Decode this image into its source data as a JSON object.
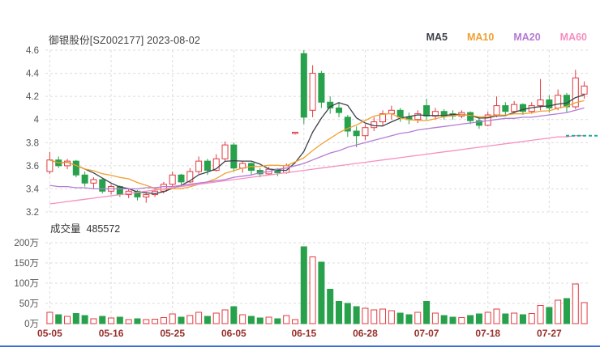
{
  "header": {
    "title": "御银股份[SZ002177] 2023-08-02",
    "legend": [
      {
        "label": "MA5",
        "color": "#3c4048"
      },
      {
        "label": "MA10",
        "color": "#f0a030"
      },
      {
        "label": "MA20",
        "color": "#b57bd5"
      },
      {
        "label": "MA60",
        "color": "#f68fc0"
      }
    ]
  },
  "volume": {
    "label": "成交量",
    "value": "485572"
  },
  "chart_data": {
    "type": "candlestick",
    "title": "御银股份[SZ002177] 2023-08-02",
    "legend_position": "top-right",
    "grid": true,
    "price_axis": {
      "min": 3.2,
      "max": 4.6,
      "ticks": [
        {
          "v": 4.6,
          "label": "4.6"
        },
        {
          "v": 4.4,
          "label": "4.4"
        },
        {
          "v": 4.2,
          "label": "4.2"
        },
        {
          "v": 4.0,
          "label": "4"
        },
        {
          "v": 3.8,
          "label": "3.8"
        },
        {
          "v": 3.6,
          "label": "3.6"
        },
        {
          "v": 3.4,
          "label": "3.4"
        },
        {
          "v": 3.2,
          "label": "3.2"
        }
      ]
    },
    "volume_axis": {
      "min": 0,
      "max": 200,
      "unit": "万",
      "ticks": [
        {
          "v": 200,
          "label": "200万"
        },
        {
          "v": 150,
          "label": "150万"
        },
        {
          "v": 100,
          "label": "100万"
        },
        {
          "v": 50,
          "label": "50万"
        },
        {
          "v": 0,
          "label": "0万"
        }
      ]
    },
    "x_ticks": [
      {
        "i": 0,
        "label": "05-05"
      },
      {
        "i": 7,
        "label": "05-16"
      },
      {
        "i": 14,
        "label": "05-25"
      },
      {
        "i": 21,
        "label": "06-05"
      },
      {
        "i": 29,
        "label": "06-15"
      },
      {
        "i": 36,
        "label": "06-28"
      },
      {
        "i": 43,
        "label": "07-07"
      },
      {
        "i": 50,
        "label": "07-18"
      },
      {
        "i": 57,
        "label": "07-27"
      }
    ],
    "colors": {
      "up": "#e23b41",
      "down": "#27a14b",
      "grid": "#dcdcdc",
      "ma5": "#3c4048",
      "ma10": "#f0a030",
      "ma20": "#b57bd5",
      "ma60": "#f68fc0",
      "date": "#97302c",
      "axis_text": "#555555",
      "marker": "#1fa8a0"
    },
    "marker_price": 3.86,
    "candles": [
      {
        "d": "05-05",
        "o": 3.55,
        "h": 3.72,
        "l": 3.53,
        "c": 3.65,
        "v": 28
      },
      {
        "d": "05-08",
        "o": 3.65,
        "h": 3.68,
        "l": 3.58,
        "c": 3.6,
        "v": 22
      },
      {
        "d": "05-09",
        "o": 3.6,
        "h": 3.66,
        "l": 3.57,
        "c": 3.64,
        "v": 18
      },
      {
        "d": "05-10",
        "o": 3.64,
        "h": 3.65,
        "l": 3.5,
        "c": 3.52,
        "v": 25
      },
      {
        "d": "05-11",
        "o": 3.52,
        "h": 3.55,
        "l": 3.42,
        "c": 3.45,
        "v": 20
      },
      {
        "d": "05-12",
        "o": 3.45,
        "h": 3.5,
        "l": 3.4,
        "c": 3.48,
        "v": 12
      },
      {
        "d": "05-15",
        "o": 3.48,
        "h": 3.49,
        "l": 3.36,
        "c": 3.38,
        "v": 18
      },
      {
        "d": "05-16",
        "o": 3.38,
        "h": 3.44,
        "l": 3.35,
        "c": 3.42,
        "v": 14
      },
      {
        "d": "05-17",
        "o": 3.42,
        "h": 3.43,
        "l": 3.33,
        "c": 3.35,
        "v": 16
      },
      {
        "d": "05-18",
        "o": 3.35,
        "h": 3.4,
        "l": 3.32,
        "c": 3.38,
        "v": 10
      },
      {
        "d": "05-19",
        "o": 3.38,
        "h": 3.39,
        "l": 3.3,
        "c": 3.33,
        "v": 12
      },
      {
        "d": "05-22",
        "o": 3.33,
        "h": 3.37,
        "l": 3.28,
        "c": 3.35,
        "v": 10
      },
      {
        "d": "05-23",
        "o": 3.35,
        "h": 3.4,
        "l": 3.33,
        "c": 3.38,
        "v": 11
      },
      {
        "d": "05-24",
        "o": 3.38,
        "h": 3.46,
        "l": 3.36,
        "c": 3.44,
        "v": 15
      },
      {
        "d": "05-25",
        "o": 3.44,
        "h": 3.55,
        "l": 3.42,
        "c": 3.52,
        "v": 24
      },
      {
        "d": "05-26",
        "o": 3.52,
        "h": 3.53,
        "l": 3.43,
        "c": 3.46,
        "v": 16
      },
      {
        "d": "05-29",
        "o": 3.46,
        "h": 3.58,
        "l": 3.45,
        "c": 3.55,
        "v": 20
      },
      {
        "d": "05-30",
        "o": 3.55,
        "h": 3.68,
        "l": 3.53,
        "c": 3.64,
        "v": 28
      },
      {
        "d": "05-31",
        "o": 3.64,
        "h": 3.66,
        "l": 3.52,
        "c": 3.56,
        "v": 18
      },
      {
        "d": "06-01",
        "o": 3.56,
        "h": 3.7,
        "l": 3.55,
        "c": 3.66,
        "v": 26
      },
      {
        "d": "06-02",
        "o": 3.66,
        "h": 3.81,
        "l": 3.64,
        "c": 3.78,
        "v": 34
      },
      {
        "d": "06-05",
        "o": 3.78,
        "h": 3.8,
        "l": 3.55,
        "c": 3.58,
        "v": 42
      },
      {
        "d": "06-06",
        "o": 3.58,
        "h": 3.64,
        "l": 3.54,
        "c": 3.62,
        "v": 22
      },
      {
        "d": "06-07",
        "o": 3.62,
        "h": 3.63,
        "l": 3.52,
        "c": 3.56,
        "v": 18
      },
      {
        "d": "06-08",
        "o": 3.56,
        "h": 3.58,
        "l": 3.5,
        "c": 3.53,
        "v": 14
      },
      {
        "d": "06-09",
        "o": 3.53,
        "h": 3.59,
        "l": 3.52,
        "c": 3.57,
        "v": 16
      },
      {
        "d": "06-12",
        "o": 3.57,
        "h": 3.58,
        "l": 3.51,
        "c": 3.54,
        "v": 12
      },
      {
        "d": "06-13",
        "o": 3.54,
        "h": 3.62,
        "l": 3.53,
        "c": 3.6,
        "v": 20
      },
      {
        "d": "06-14",
        "o": 3.88,
        "h": 3.89,
        "l": 3.87,
        "c": 3.89,
        "v": 10
      },
      {
        "d": "06-15",
        "o": 4.57,
        "h": 4.6,
        "l": 3.96,
        "c": 4.02,
        "v": 190
      },
      {
        "d": "06-16",
        "o": 4.08,
        "h": 4.47,
        "l": 4.02,
        "c": 4.4,
        "v": 165
      },
      {
        "d": "06-19",
        "o": 4.4,
        "h": 4.42,
        "l": 4.1,
        "c": 4.15,
        "v": 152
      },
      {
        "d": "06-20",
        "o": 4.15,
        "h": 4.2,
        "l": 4.05,
        "c": 4.1,
        "v": 85
      },
      {
        "d": "06-21",
        "o": 4.1,
        "h": 4.15,
        "l": 4.02,
        "c": 4.06,
        "v": 55
      },
      {
        "d": "06-26",
        "o": 4.02,
        "h": 4.04,
        "l": 3.85,
        "c": 3.9,
        "v": 50
      },
      {
        "d": "06-27",
        "o": 3.9,
        "h": 3.94,
        "l": 3.76,
        "c": 3.86,
        "v": 42
      },
      {
        "d": "06-28",
        "o": 3.86,
        "h": 3.96,
        "l": 3.82,
        "c": 3.93,
        "v": 38
      },
      {
        "d": "06-29",
        "o": 3.93,
        "h": 4.02,
        "l": 3.9,
        "c": 3.98,
        "v": 34
      },
      {
        "d": "06-30",
        "o": 3.98,
        "h": 4.08,
        "l": 3.95,
        "c": 4.05,
        "v": 36
      },
      {
        "d": "07-03",
        "o": 4.05,
        "h": 4.12,
        "l": 4.0,
        "c": 4.08,
        "v": 32
      },
      {
        "d": "07-04",
        "o": 4.08,
        "h": 4.1,
        "l": 3.98,
        "c": 4.02,
        "v": 26
      },
      {
        "d": "07-05",
        "o": 4.02,
        "h": 4.06,
        "l": 3.96,
        "c": 4.0,
        "v": 22
      },
      {
        "d": "07-06",
        "o": 4.0,
        "h": 4.08,
        "l": 3.97,
        "c": 4.05,
        "v": 28
      },
      {
        "d": "07-07",
        "o": 4.12,
        "h": 4.18,
        "l": 4.0,
        "c": 4.03,
        "v": 55
      },
      {
        "d": "07-10",
        "o": 4.03,
        "h": 4.1,
        "l": 4.0,
        "c": 4.07,
        "v": 26
      },
      {
        "d": "07-11",
        "o": 4.07,
        "h": 4.09,
        "l": 4.0,
        "c": 4.03,
        "v": 20
      },
      {
        "d": "07-12",
        "o": 4.05,
        "h": 4.08,
        "l": 4.0,
        "c": 4.03,
        "v": 16
      },
      {
        "d": "07-13",
        "o": 4.03,
        "h": 4.08,
        "l": 4.01,
        "c": 4.06,
        "v": 15
      },
      {
        "d": "07-14",
        "o": 4.06,
        "h": 4.07,
        "l": 3.96,
        "c": 3.99,
        "v": 20
      },
      {
        "d": "07-17",
        "o": 3.99,
        "h": 4.02,
        "l": 3.92,
        "c": 3.95,
        "v": 24
      },
      {
        "d": "07-18",
        "o": 3.95,
        "h": 4.07,
        "l": 3.94,
        "c": 4.04,
        "v": 28
      },
      {
        "d": "07-19",
        "o": 4.04,
        "h": 4.2,
        "l": 4.02,
        "c": 4.12,
        "v": 36
      },
      {
        "d": "07-20",
        "o": 4.12,
        "h": 4.15,
        "l": 4.04,
        "c": 4.07,
        "v": 24
      },
      {
        "d": "07-21",
        "o": 4.07,
        "h": 4.16,
        "l": 4.05,
        "c": 4.13,
        "v": 26
      },
      {
        "d": "07-24",
        "o": 4.13,
        "h": 4.14,
        "l": 4.04,
        "c": 4.07,
        "v": 22
      },
      {
        "d": "07-25",
        "o": 4.07,
        "h": 4.15,
        "l": 4.05,
        "c": 4.12,
        "v": 25
      },
      {
        "d": "07-26",
        "o": 4.12,
        "h": 4.35,
        "l": 4.08,
        "c": 4.17,
        "v": 45
      },
      {
        "d": "07-27",
        "o": 4.17,
        "h": 4.21,
        "l": 4.06,
        "c": 4.1,
        "v": 40
      },
      {
        "d": "07-28",
        "o": 4.1,
        "h": 4.26,
        "l": 4.08,
        "c": 4.21,
        "v": 58
      },
      {
        "d": "07-31",
        "o": 4.21,
        "h": 4.23,
        "l": 4.06,
        "c": 4.11,
        "v": 62
      },
      {
        "d": "08-01",
        "o": 4.11,
        "h": 4.43,
        "l": 4.09,
        "c": 4.36,
        "v": 98
      },
      {
        "d": "08-02",
        "o": 4.22,
        "h": 4.33,
        "l": 4.18,
        "c": 4.29,
        "v": 52
      }
    ],
    "ma20": [
      3.43,
      3.42,
      3.42,
      3.41,
      3.41,
      3.4,
      3.4,
      3.4,
      3.4,
      3.4,
      3.4,
      3.41,
      3.41,
      3.42,
      3.42,
      3.43,
      3.44,
      3.45,
      3.46,
      3.47,
      3.48,
      3.5,
      3.51,
      3.52,
      3.54,
      3.55,
      3.57,
      3.58,
      3.6,
      3.62,
      3.65,
      3.68,
      3.71,
      3.73,
      3.76,
      3.78,
      3.8,
      3.82,
      3.84,
      3.86,
      3.88,
      3.89,
      3.91,
      3.92,
      3.93,
      3.94,
      3.95,
      3.96,
      3.97,
      3.98,
      3.99,
      4.0,
      4.01,
      4.01,
      4.02,
      4.02,
      4.03,
      4.04,
      4.05,
      4.06,
      4.08,
      4.1
    ],
    "ma60": [
      3.27,
      3.28,
      3.29,
      3.3,
      3.31,
      3.32,
      3.33,
      3.34,
      3.35,
      3.36,
      3.37,
      3.38,
      3.39,
      3.4,
      3.41,
      3.42,
      3.43,
      3.44,
      3.45,
      3.46,
      3.47,
      3.48,
      3.49,
      3.5,
      3.51,
      3.52,
      3.53,
      3.54,
      3.55,
      3.56,
      3.57,
      3.58,
      3.59,
      3.6,
      3.61,
      3.62,
      3.63,
      3.64,
      3.65,
      3.66,
      3.67,
      3.68,
      3.69,
      3.7,
      3.71,
      3.72,
      3.73,
      3.74,
      3.75,
      3.76,
      3.77,
      3.78,
      3.79,
      3.8,
      3.81,
      3.82,
      3.83,
      3.84,
      3.85,
      3.85,
      3.86,
      3.86
    ]
  }
}
